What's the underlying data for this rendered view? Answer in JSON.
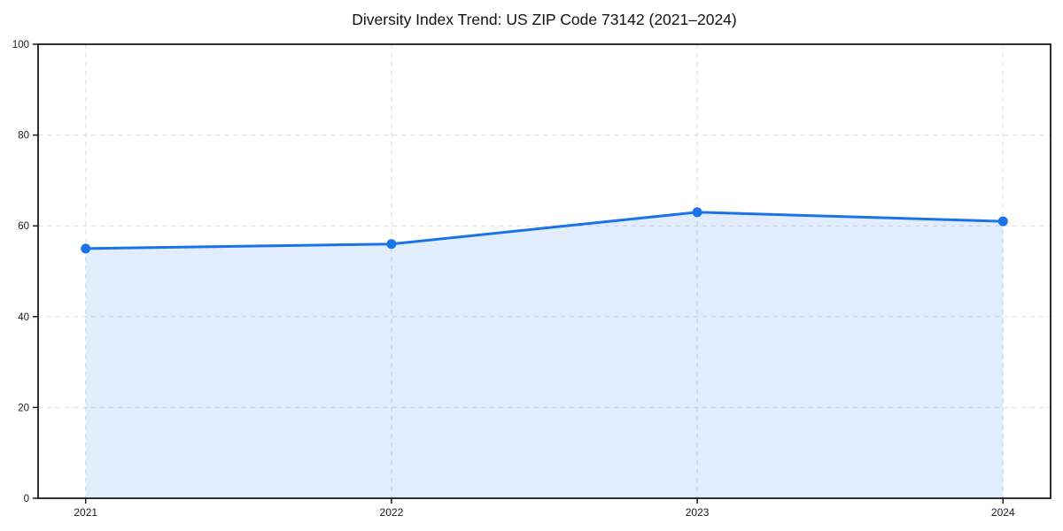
{
  "chart_data": {
    "type": "line",
    "title": "Diversity Index Trend: US ZIP Code 73142 (2021–2024)",
    "categories": [
      "2021",
      "2022",
      "2023",
      "2024"
    ],
    "values": [
      55,
      56,
      63,
      61
    ],
    "xlabel": "",
    "ylabel": "",
    "ylim": [
      0,
      100
    ],
    "yticks": [
      0,
      20,
      40,
      60,
      80,
      100
    ],
    "grid": "dashed, both axes",
    "legend_position": "none",
    "area_fill": true,
    "marker": "circle",
    "colors": {
      "line": "#1a73e8",
      "marker": "#1a73e8",
      "fill": "rgba(26, 115, 232, 0.13)",
      "grid": "#dcdcdc",
      "spine": "#1a1a1a",
      "tick_text": "#1a1a1a",
      "background": "#ffffff"
    }
  }
}
